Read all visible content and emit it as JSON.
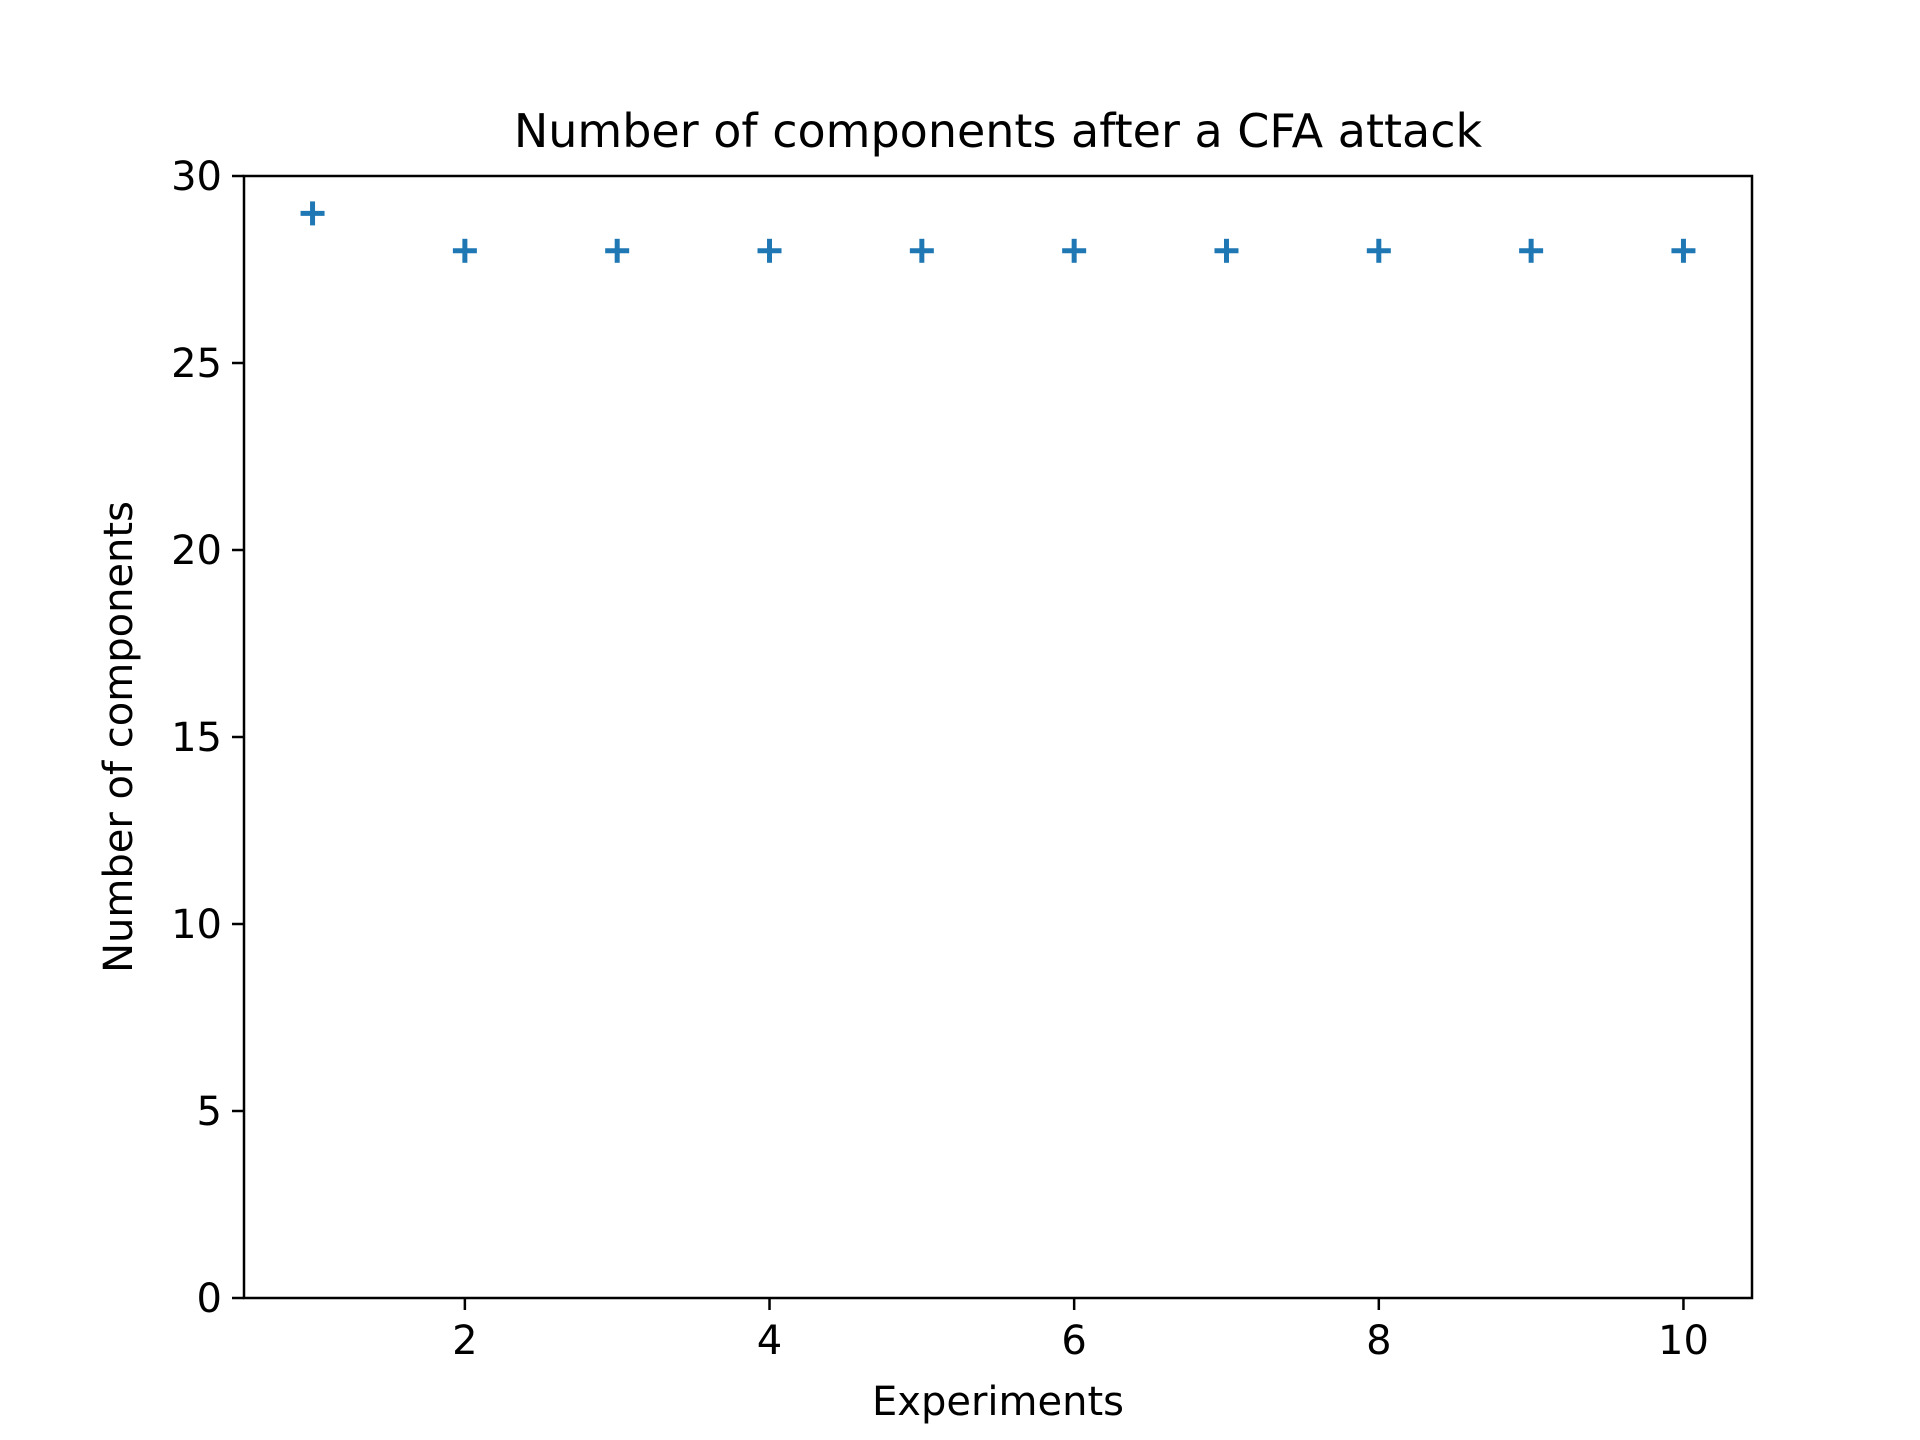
{
  "chart_data": {
    "type": "scatter",
    "title": "Number of components after a CFA attack",
    "xlabel": "Experiments",
    "ylabel": "Number of components",
    "xlim": [
      0.55,
      10.45
    ],
    "ylim": [
      0,
      30
    ],
    "x_ticks": [
      2,
      4,
      6,
      8,
      10
    ],
    "y_ticks": [
      0,
      5,
      10,
      15,
      20,
      25,
      30
    ],
    "grid": false,
    "marker": "plus",
    "color": "#1f77b4",
    "series": [
      {
        "x": [
          1,
          2,
          3,
          4,
          5,
          6,
          7,
          8,
          9,
          10
        ],
        "y": [
          29,
          28,
          28,
          28,
          28,
          28,
          28,
          28,
          28,
          28
        ]
      }
    ]
  }
}
